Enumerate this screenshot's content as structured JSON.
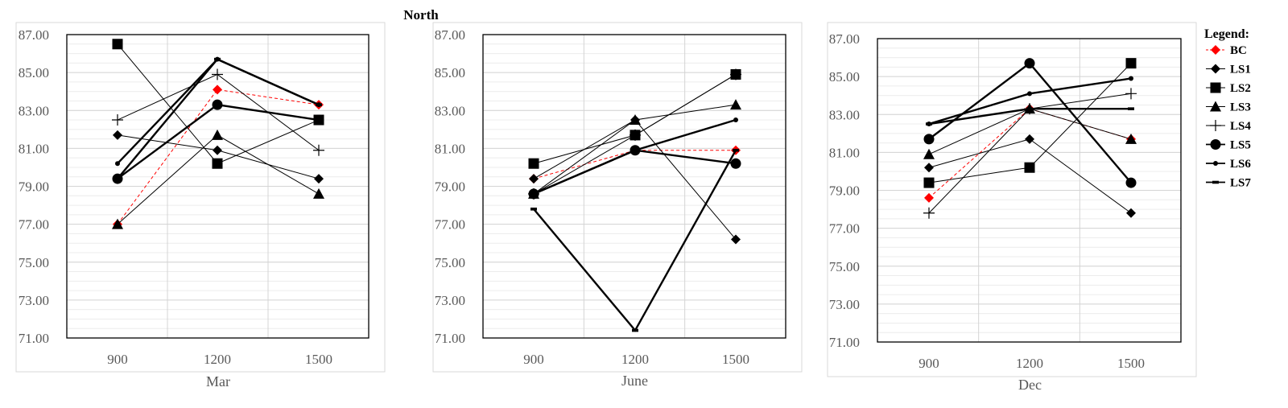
{
  "figure": {
    "title": "North",
    "legend_title": "Legend:"
  },
  "chart_data": [
    {
      "type": "line",
      "xlabel": "Mar",
      "categories": [
        "900",
        "1200",
        "1500"
      ],
      "y_ticks": [
        "87.00",
        "85.00",
        "83.00",
        "81.00",
        "79.00",
        "77.00",
        "75.00",
        "73.00",
        "71.00"
      ],
      "ylim": [
        71,
        87
      ],
      "grid": true,
      "series": [
        {
          "name": "BC",
          "values": [
            77.0,
            84.1,
            83.3
          ]
        },
        {
          "name": "LS1",
          "values": [
            81.7,
            80.9,
            79.4
          ]
        },
        {
          "name": "LS2",
          "values": [
            86.5,
            80.2,
            82.5
          ]
        },
        {
          "name": "LS3",
          "values": [
            77.0,
            81.7,
            78.6
          ]
        },
        {
          "name": "LS4",
          "values": [
            82.5,
            84.9,
            80.9
          ]
        },
        {
          "name": "LS5",
          "values": [
            79.4,
            83.3,
            82.5
          ]
        },
        {
          "name": "LS6",
          "values": [
            80.2,
            85.7,
            83.3
          ]
        },
        {
          "name": "LS7",
          "values": [
            79.4,
            85.7,
            83.3
          ]
        }
      ]
    },
    {
      "type": "line",
      "xlabel": "June",
      "categories": [
        "900",
        "1200",
        "1500"
      ],
      "y_ticks": [
        "87.00",
        "85.00",
        "83.00",
        "81.00",
        "79.00",
        "77.00",
        "75.00",
        "73.00",
        "71.00"
      ],
      "ylim": [
        71,
        87
      ],
      "grid": true,
      "series": [
        {
          "name": "BC",
          "values": [
            79.4,
            80.9,
            80.9
          ]
        },
        {
          "name": "LS1",
          "values": [
            79.4,
            82.5,
            76.2
          ]
        },
        {
          "name": "LS2",
          "values": [
            80.2,
            81.7,
            84.9
          ]
        },
        {
          "name": "LS3",
          "values": [
            78.6,
            82.5,
            83.3
          ]
        },
        {
          "name": "LS4",
          "values": [
            78.6,
            81.7,
            84.9
          ]
        },
        {
          "name": "LS5",
          "values": [
            78.6,
            80.9,
            80.2
          ]
        },
        {
          "name": "LS6",
          "values": [
            78.6,
            80.9,
            82.5
          ]
        },
        {
          "name": "LS7",
          "values": [
            77.8,
            71.4,
            80.9
          ]
        }
      ]
    },
    {
      "type": "line",
      "xlabel": "Dec",
      "categories": [
        "900",
        "1200",
        "1500"
      ],
      "y_ticks": [
        "87.00",
        "85.00",
        "83.00",
        "81.00",
        "79.00",
        "77.00",
        "75.00",
        "73.00",
        "71.00"
      ],
      "ylim": [
        71,
        87
      ],
      "grid": true,
      "series": [
        {
          "name": "BC",
          "values": [
            78.6,
            83.3,
            81.7
          ]
        },
        {
          "name": "LS1",
          "values": [
            80.2,
            81.7,
            77.8
          ]
        },
        {
          "name": "LS2",
          "values": [
            79.4,
            80.2,
            85.7
          ]
        },
        {
          "name": "LS3",
          "values": [
            80.9,
            83.3,
            81.7
          ]
        },
        {
          "name": "LS4",
          "values": [
            77.8,
            83.3,
            84.1
          ]
        },
        {
          "name": "LS5",
          "values": [
            81.7,
            85.7,
            79.4
          ]
        },
        {
          "name": "LS6",
          "values": [
            82.5,
            84.1,
            84.9
          ]
        },
        {
          "name": "LS7",
          "values": [
            82.5,
            83.3,
            83.3
          ]
        }
      ]
    }
  ],
  "legend": [
    {
      "name": "BC",
      "marker": "diamond",
      "color": "#ff0000",
      "dash": true,
      "width": 1
    },
    {
      "name": "LS1",
      "marker": "diamond",
      "color": "#000000",
      "dash": false,
      "width": 1
    },
    {
      "name": "LS2",
      "marker": "square",
      "color": "#000000",
      "dash": false,
      "width": 1
    },
    {
      "name": "LS3",
      "marker": "triangle",
      "color": "#000000",
      "dash": false,
      "width": 1
    },
    {
      "name": "LS4",
      "marker": "plus",
      "color": "#000000",
      "dash": false,
      "width": 1
    },
    {
      "name": "LS5",
      "marker": "circle",
      "color": "#000000",
      "dash": false,
      "width": 2.4
    },
    {
      "name": "LS6",
      "marker": "dot",
      "color": "#000000",
      "dash": false,
      "width": 2.4
    },
    {
      "name": "LS7",
      "marker": "dash",
      "color": "#000000",
      "dash": false,
      "width": 2.4
    }
  ]
}
